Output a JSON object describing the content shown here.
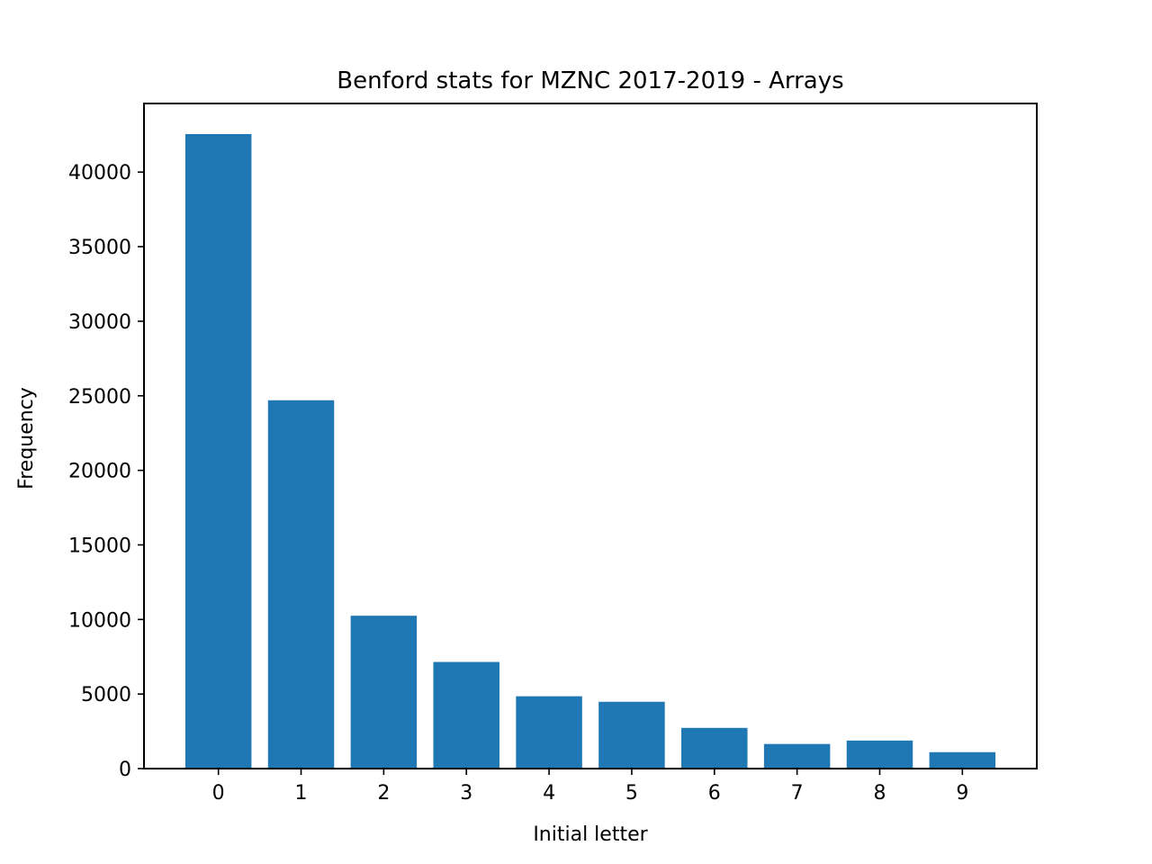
{
  "chart_data": {
    "type": "bar",
    "title": "Benford stats for MZNC 2017-2019 - Arrays",
    "xlabel": "Initial letter",
    "ylabel": "Frequency",
    "categories": [
      "0",
      "1",
      "2",
      "3",
      "4",
      "5",
      "6",
      "7",
      "8",
      "9"
    ],
    "values": [
      42550,
      24700,
      10250,
      7150,
      4850,
      4480,
      2730,
      1650,
      1880,
      1100
    ],
    "ylim": [
      0,
      44600
    ],
    "yticks": [
      0,
      5000,
      10000,
      15000,
      20000,
      25000,
      30000,
      35000,
      40000
    ],
    "ytick_labels": [
      "0",
      "5000",
      "10000",
      "15000",
      "20000",
      "25000",
      "30000",
      "35000",
      "40000"
    ],
    "grid": false,
    "bar_color": "#1f77b4"
  }
}
